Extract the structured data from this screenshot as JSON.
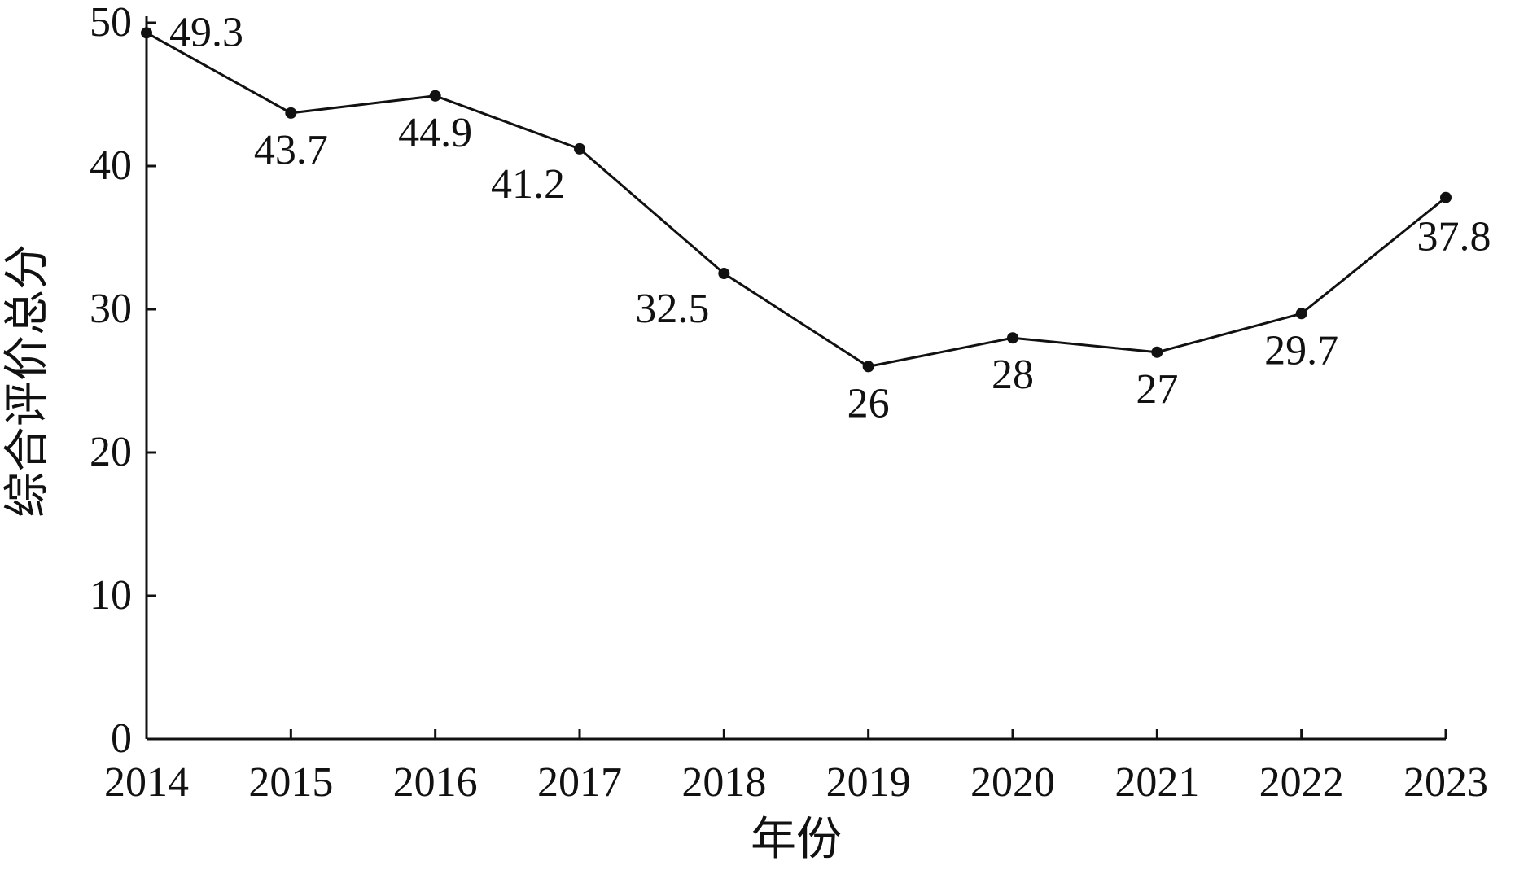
{
  "chart_data": {
    "type": "line",
    "title": "",
    "xlabel": "年份",
    "ylabel": "综合评价总分",
    "x": [
      "2014",
      "2015",
      "2016",
      "2017",
      "2018",
      "2019",
      "2020",
      "2021",
      "2022",
      "2023"
    ],
    "series": [
      {
        "values": [
          49.3,
          43.7,
          44.9,
          41.2,
          32.5,
          26,
          28,
          27,
          29.7,
          37.8
        ],
        "data_labels": [
          "49.3",
          "43.7",
          "44.9",
          "41.2",
          "32.5",
          "26",
          "28",
          "27",
          "29.7",
          "37.8"
        ]
      }
    ],
    "ylim": [
      0,
      50
    ],
    "yticks": [
      "0",
      "10",
      "20",
      "30",
      "40",
      "50"
    ],
    "grid": false,
    "legend": "none",
    "colors": {
      "line": "#111111",
      "marker": "#111111",
      "axis": "#111111"
    }
  }
}
